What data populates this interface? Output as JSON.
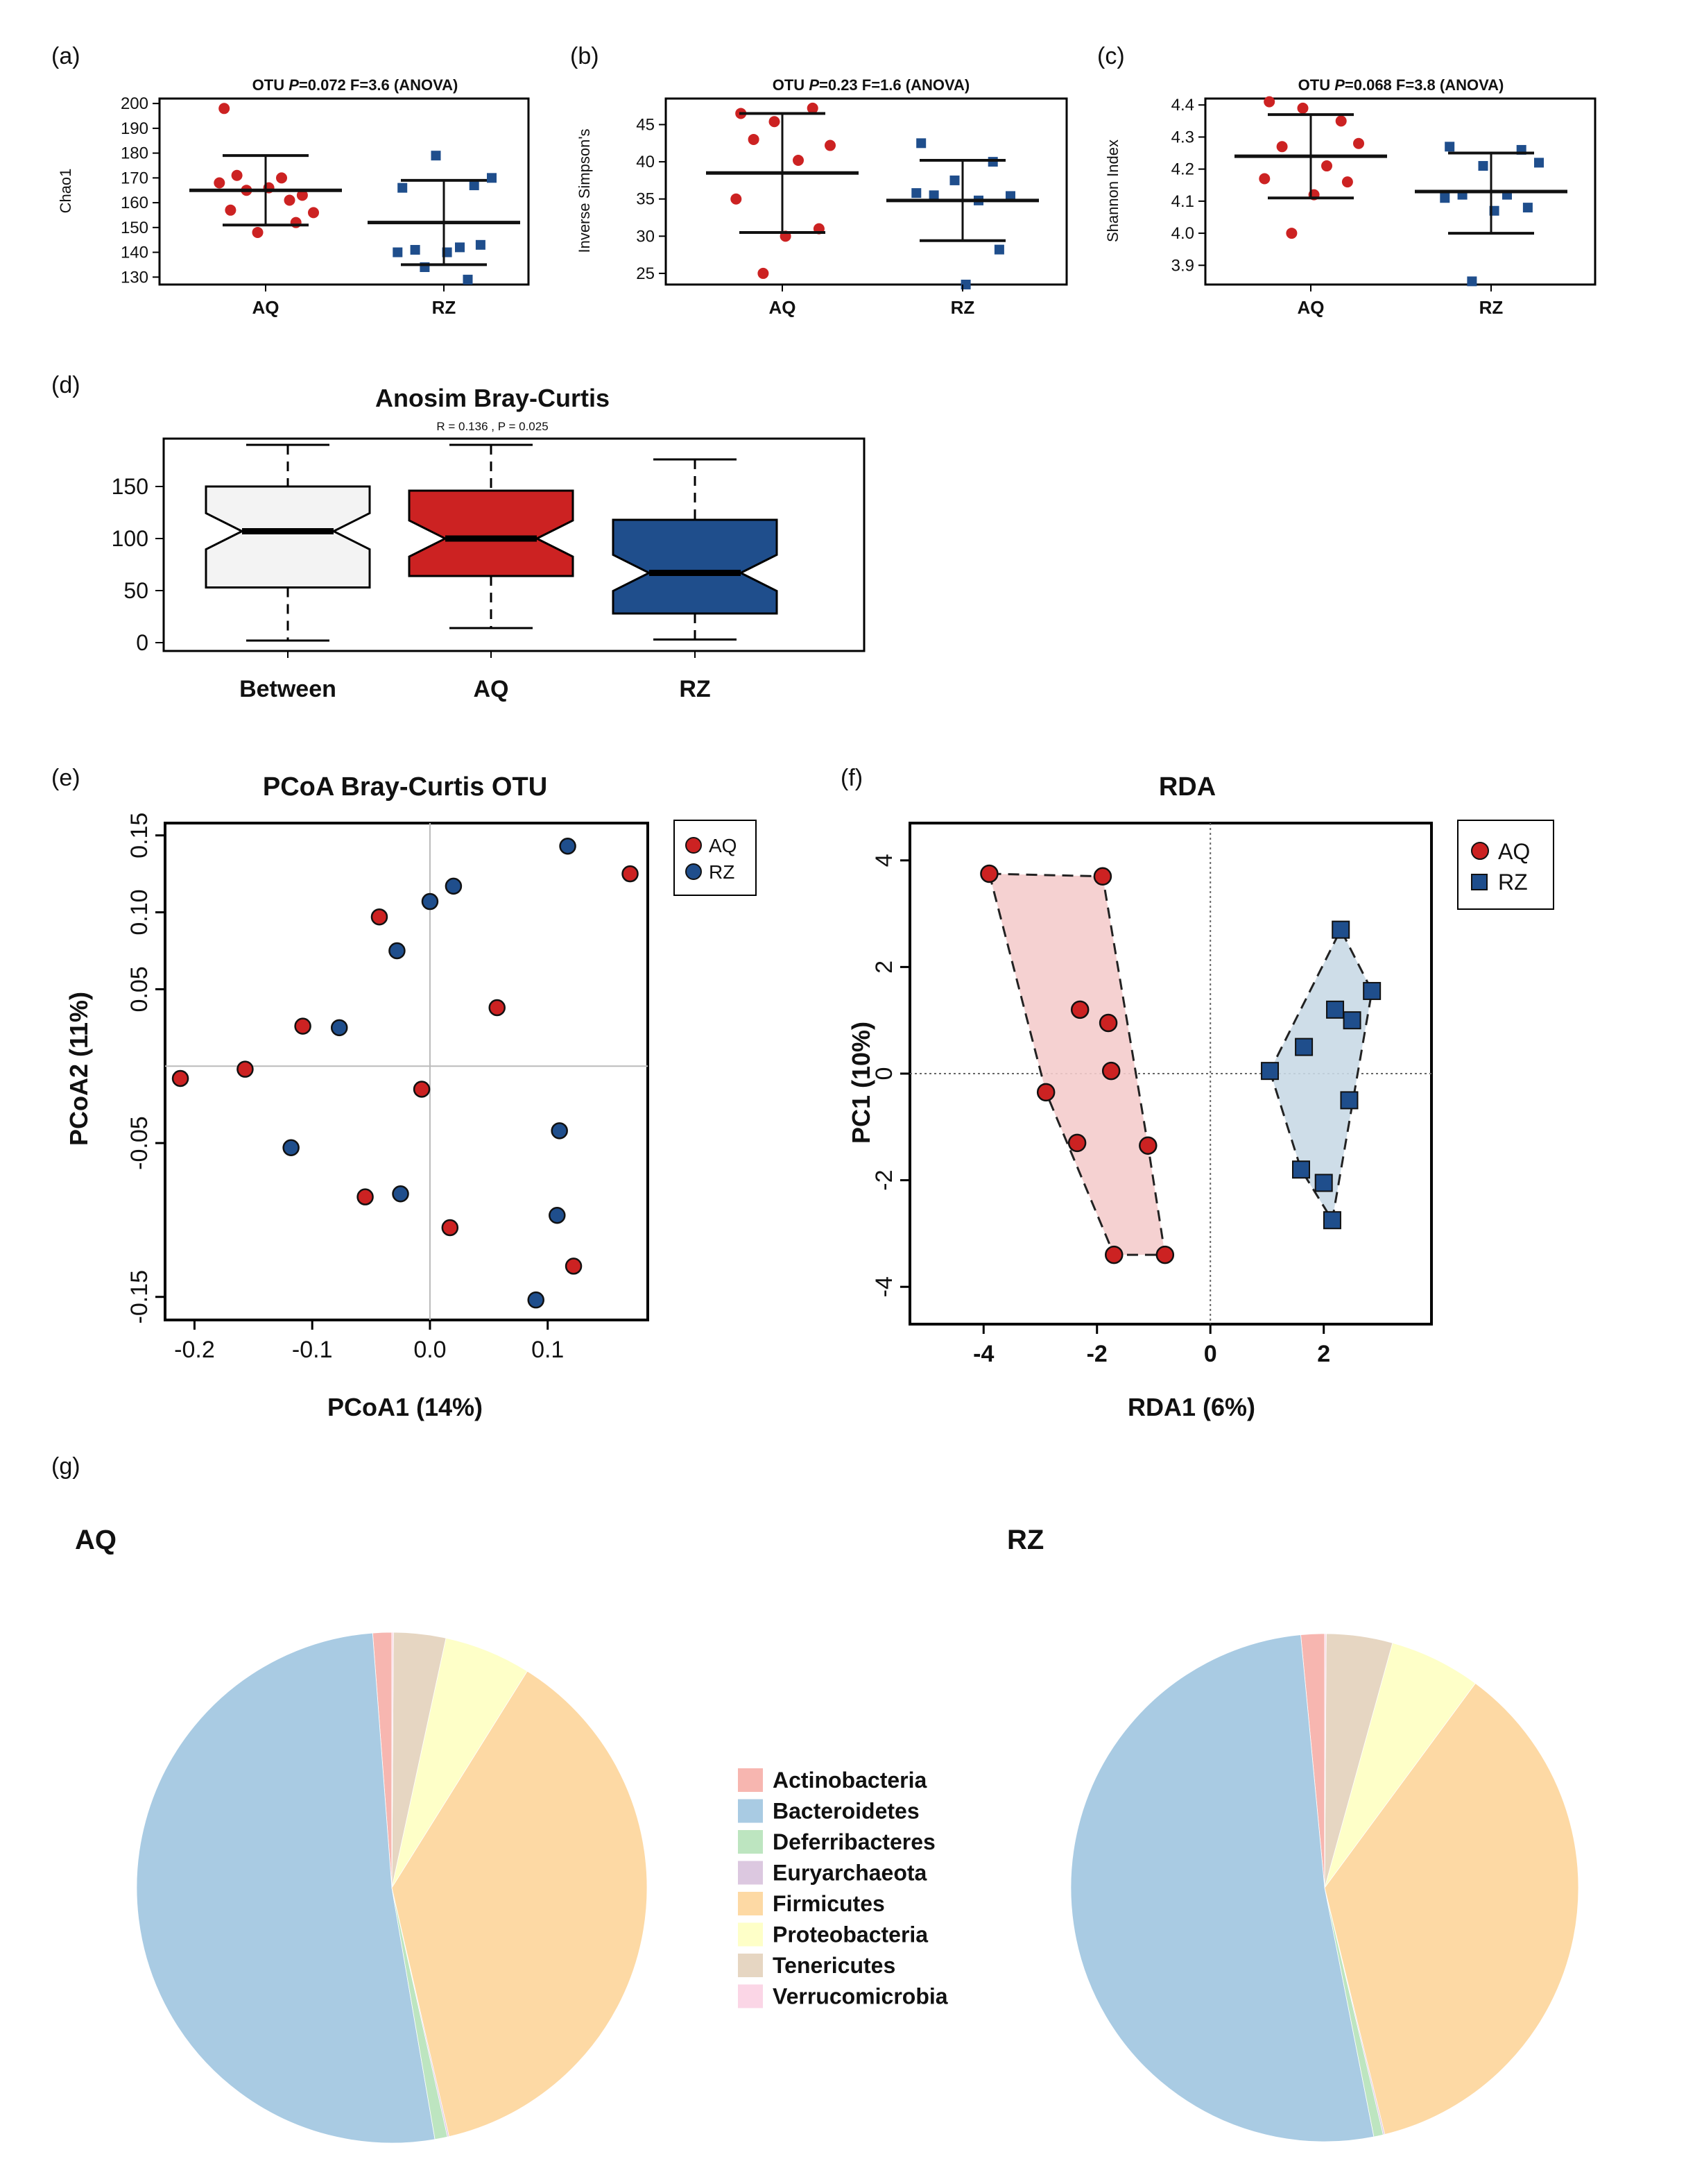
{
  "colors": {
    "AQ": "#cc2222",
    "RZ": "#1f4e8c",
    "AQ_hull": "#f4cccc",
    "RZ_hull": "#c9d9e6",
    "between": "#f3f3f3"
  },
  "panel_labels": [
    "(a)",
    "(b)",
    "(c)",
    "(d)",
    "(e)",
    "(f)",
    "(g)"
  ],
  "chart_data": [
    {
      "type": "scatter",
      "id": "a",
      "title_prefix": "OTU ",
      "title_p_label": "P",
      "title_rest": "=0.072 F=3.6 (ANOVA)",
      "ylabel": "Chao1",
      "categories": [
        "AQ",
        "RZ"
      ],
      "ylim": [
        127,
        202
      ],
      "yticks": [
        130,
        140,
        150,
        160,
        170,
        180,
        190,
        200
      ],
      "series": [
        {
          "name": "AQ",
          "mean": 165,
          "upper": 179,
          "lower": 151,
          "values": [
            198,
            152,
            148,
            156,
            171,
            170,
            168,
            163,
            166,
            165,
            161,
            157
          ]
        },
        {
          "name": "RZ",
          "mean": 152,
          "upper": 169,
          "lower": 135,
          "values": [
            166,
            167,
            179,
            170,
            141,
            142,
            140,
            143,
            140,
            134,
            129
          ]
        }
      ]
    },
    {
      "type": "scatter",
      "id": "b",
      "title_prefix": "OTU ",
      "title_p_label": "P",
      "title_rest": "=0.23 F=1.6 (ANOVA)",
      "ylabel": "Inverse Simpson's",
      "categories": [
        "AQ",
        "RZ"
      ],
      "ylim": [
        23.5,
        48.5
      ],
      "yticks": [
        25,
        30,
        35,
        40,
        45
      ],
      "series": [
        {
          "name": "AQ",
          "mean": 38.5,
          "upper": 46.5,
          "lower": 30.5,
          "values": [
            46.5,
            47.2,
            45.4,
            42.2,
            43,
            40.2,
            35,
            31,
            30,
            25
          ]
        },
        {
          "name": "RZ",
          "mean": 34.8,
          "upper": 40.2,
          "lower": 29.4,
          "values": [
            42.5,
            40,
            37.5,
            35.4,
            35.5,
            34.8,
            35.8,
            28.2,
            23.5
          ]
        }
      ]
    },
    {
      "type": "scatter",
      "id": "c",
      "title_prefix": "OTU ",
      "title_p_label": "P",
      "title_rest": "=0.068 F=3.8 (ANOVA)",
      "ylabel": "Shannon Index",
      "categories": [
        "AQ",
        "RZ"
      ],
      "ylim": [
        3.84,
        4.42
      ],
      "yticks": [
        3.9,
        4.0,
        4.1,
        4.2,
        4.3,
        4.4
      ],
      "series": [
        {
          "name": "AQ",
          "mean": 4.24,
          "upper": 4.37,
          "lower": 4.11,
          "values": [
            4.41,
            4.35,
            4.39,
            4.28,
            4.27,
            4.21,
            4.17,
            4.16,
            4.12,
            4.0
          ]
        },
        {
          "name": "RZ",
          "mean": 4.13,
          "upper": 4.25,
          "lower": 4.0,
          "values": [
            4.27,
            4.26,
            4.21,
            4.22,
            4.12,
            4.12,
            4.11,
            4.08,
            4.07,
            3.85
          ]
        }
      ]
    },
    {
      "type": "box",
      "id": "d",
      "title": "Anosim Bray-Curtis",
      "subtitle": "R =  0.136 ,  P =  0.025",
      "categories": [
        "Between",
        "AQ",
        "RZ"
      ],
      "ylim": [
        -8,
        196
      ],
      "yticks": [
        0,
        50,
        100,
        150
      ],
      "boxes": [
        {
          "name": "Between",
          "min": 2,
          "q1": 53,
          "median": 107,
          "q3": 150,
          "max": 190
        },
        {
          "name": "AQ",
          "min": 14,
          "q1": 64,
          "median": 100,
          "q3": 146,
          "max": 190
        },
        {
          "name": "RZ",
          "min": 3,
          "q1": 28,
          "median": 67,
          "q3": 118,
          "max": 176
        }
      ]
    },
    {
      "type": "scatter",
      "id": "e",
      "title": "PCoA Bray-Curtis OTU",
      "xlabel": "PCoA1 (14%)",
      "ylabel": "PCoA2 (11%)",
      "xlim": [
        -0.225,
        0.185
      ],
      "ylim": [
        -0.165,
        0.158
      ],
      "xticks": [
        -0.2,
        -0.1,
        0.0,
        0.1
      ],
      "yticks": [
        -0.15,
        -0.05,
        0.05,
        0.1,
        0.15
      ],
      "legend": [
        "AQ",
        "RZ"
      ],
      "legend_position": "top-right",
      "series": [
        {
          "name": "AQ",
          "x": [
            -0.212,
            -0.157,
            -0.108,
            -0.043,
            -0.007,
            0.057,
            0.17,
            -0.055,
            0.017,
            0.122
          ],
          "y": [
            -0.008,
            -0.002,
            0.026,
            0.097,
            -0.015,
            0.038,
            0.125,
            -0.085,
            -0.105,
            -0.13
          ]
        },
        {
          "name": "RZ",
          "x": [
            0.117,
            0.02,
            0.0,
            -0.028,
            -0.077,
            -0.118,
            -0.025,
            0.11,
            0.108,
            0.09
          ],
          "y": [
            0.143,
            0.117,
            0.107,
            0.075,
            0.025,
            -0.053,
            -0.083,
            -0.042,
            -0.097,
            -0.152
          ]
        }
      ]
    },
    {
      "type": "scatter",
      "id": "f",
      "title": "RDA",
      "xlabel": "RDA1 (6%)",
      "ylabel": "PC1 (10%)",
      "xlim": [
        -5.3,
        3.9
      ],
      "ylim": [
        -4.7,
        4.7
      ],
      "xticks": [
        -4,
        -2,
        0,
        2
      ],
      "yticks": [
        -4,
        -2,
        0,
        2,
        4
      ],
      "legend": [
        "AQ",
        "RZ"
      ],
      "legend_position": "top-right",
      "series": [
        {
          "name": "AQ",
          "x": [
            -3.9,
            -1.9,
            -2.3,
            -1.8,
            -1.75,
            -2.9,
            -2.35,
            -1.1,
            -1.7,
            -0.8
          ],
          "y": [
            3.75,
            3.7,
            1.2,
            0.95,
            0.05,
            -0.35,
            -1.3,
            -1.35,
            -3.4,
            -3.4
          ]
        },
        {
          "name": "RZ",
          "x": [
            2.3,
            2.85,
            2.2,
            2.5,
            1.65,
            1.05,
            2.45,
            1.6,
            2.0,
            2.15
          ],
          "y": [
            2.7,
            1.55,
            1.2,
            1.0,
            0.5,
            0.05,
            -0.5,
            -1.8,
            -2.05,
            -2.75
          ]
        }
      ]
    },
    {
      "type": "pie",
      "id": "g",
      "legend": [
        "Actinobacteria",
        "Bacteroidetes",
        "Deferribacteres",
        "Euryarchaeota",
        "Firmicutes",
        "Proteobacteria",
        "Tenericutes",
        "Verrucomicrobia"
      ],
      "colors": [
        "#f7b6b0",
        "#a9cbe3",
        "#bde5c0",
        "#dcc8e0",
        "#fdd9a4",
        "#feffc8",
        "#e6d6c2",
        "#fbd6e6"
      ],
      "pies": [
        {
          "name": "AQ",
          "values": [
            1.2,
            51.5,
            0.8,
            0.1,
            37.5,
            5.5,
            3.3,
            0.1
          ]
        },
        {
          "name": "RZ",
          "values": [
            1.5,
            51.5,
            0.6,
            0.1,
            36.0,
            5.8,
            4.2,
            0.1
          ]
        }
      ]
    }
  ]
}
